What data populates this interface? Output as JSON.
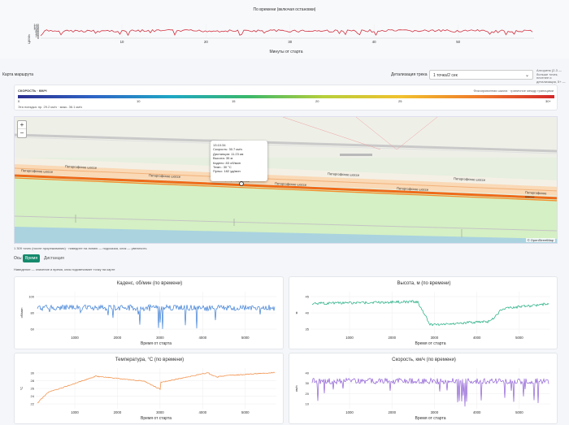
{
  "top": {
    "title": "По времени (включая остановки)",
    "ylabel": "ЦКМ/ч",
    "yticks": [
      "140",
      "120",
      "100",
      "80",
      "60",
      "40",
      "20",
      "0"
    ],
    "xticks": [
      "10",
      "20",
      "30",
      "40",
      "50"
    ],
    "xlabel": "Минуты от старта"
  },
  "controls": {
    "map_label": "Карта маршрута",
    "detail_label": "Детализация трека",
    "detail_value": "1 точка/2 сек",
    "detail_hint": "Алгоритм (2-3 — больше точек, плотнее и детализация, 5+ — увеличение)"
  },
  "legend": {
    "title": "СКОРОСТЬ · КМ/Ч",
    "scale_note": "Фиксированная шкала · граничное между границами",
    "ticks": [
      "0",
      "10",
      "15",
      "20",
      "25",
      "30+"
    ],
    "stats": "Эта поездка: пр. 29.2 км/ч · макс. 36.1 км/ч"
  },
  "map": {
    "road_labels": [
      "Петергофское шоссе",
      "Петергофское шоссе",
      "Петергофское шоссе",
      "Петергофское шоссе",
      "Петергофское шоссе",
      "Петергофское шоссе",
      "Петергофское шоссе",
      "Петергофское шоссе",
      "Петергофское шоссе"
    ],
    "attribution": "© OpenStreetMap",
    "tooltip": {
      "time": "13:10:34",
      "rows": [
        "Скорость: 30.7 км/ч",
        "Дистанция: 11.23 км",
        "Высота: 35 м",
        "Каденс: 83 об/мин",
        "Темп.: 30 °C",
        "Пульс: 182 уд/мин"
      ]
    }
  },
  "footnote": "1 309 точек (после прореживания) · наведите на линию — подсказка, клик — увеличить",
  "axis_tabs": {
    "label": "Ось:",
    "time": "Время",
    "distance": "Дистанция"
  },
  "hint": "Наведение — значение и время, клик подсвечивает точку на карте",
  "charts": [
    {
      "title": "Каденс, об/мин (по времени)",
      "ylabel": "об/мин",
      "yticks": [
        "100",
        "80",
        "60"
      ],
      "xticks": [
        "1000",
        "2000",
        "3000",
        "4000",
        "5000"
      ],
      "xlabel": "Время от старта",
      "color": "#3d7fd6"
    },
    {
      "title": "Высота, м (по времени)",
      "ylabel": "м",
      "yticks": [
        "45",
        "40",
        "35"
      ],
      "xticks": [
        "1000",
        "2000",
        "3000",
        "4000",
        "5000"
      ],
      "xlabel": "Время от старта",
      "color": "#1aaa7d"
    },
    {
      "title": "Температура, °C (по времени)",
      "ylabel": "°C",
      "yticks": [
        "30",
        "28",
        "26",
        "24",
        "22"
      ],
      "xticks": [
        "1000",
        "2000",
        "3000",
        "4000",
        "5000"
      ],
      "xlabel": "Время от старта",
      "color": "#f2873a"
    },
    {
      "title": "Скорость, км/ч (по времени)",
      "ylabel": "км/ч",
      "yticks": [
        "40",
        "30",
        "20",
        "10"
      ],
      "xticks": [
        "1000",
        "2000",
        "3000",
        "4000",
        "5000"
      ],
      "xlabel": "Время от старта",
      "color": "#8f5fd6"
    }
  ]
}
